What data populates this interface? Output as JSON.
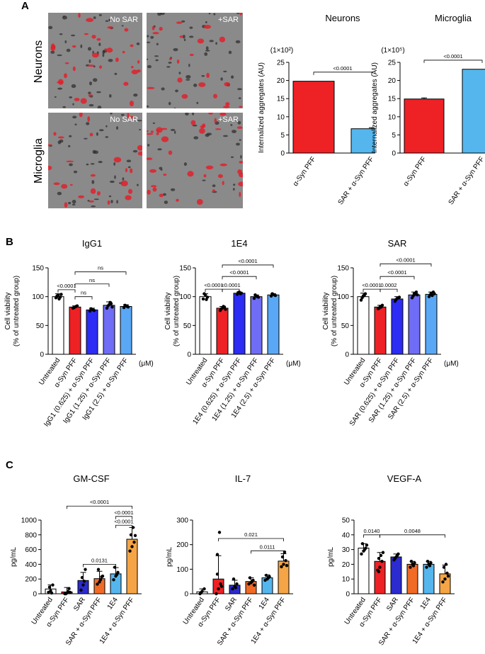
{
  "panels": {
    "A": "A",
    "B": "B",
    "C": "C"
  },
  "micrographs": {
    "rows": [
      "Neurons",
      "Microglia"
    ],
    "labels": [
      "No SAR",
      "+SAR",
      "No SAR",
      "+SAR"
    ],
    "cell_color": "#e0202a",
    "background_color": "#8a8a8a"
  },
  "chart_data": [
    {
      "id": "A-neurons",
      "type": "bar",
      "title": "Neurons",
      "ylabel": "Internalized aggregates (AU)",
      "scale_note": "(1×10²)",
      "ylim": [
        0,
        25
      ],
      "yticks": [
        0,
        5,
        10,
        15,
        20,
        25
      ],
      "categories": [
        "α-Syn PFF",
        "SAR + α-Syn PFF"
      ],
      "values": [
        19.8,
        6.7
      ],
      "errors": [
        0,
        0.3
      ],
      "colors": [
        "#ee2125",
        "#55b6ee"
      ],
      "comparisons": [
        {
          "from": 0,
          "to": 1,
          "label": "<0.0001",
          "y": 22.3
        }
      ]
    },
    {
      "id": "A-microglia",
      "type": "bar",
      "title": "Microglia",
      "ylabel": "Internalized aggregates (AU)",
      "scale_note": "(1×10⁵)",
      "ylim": [
        0,
        25
      ],
      "yticks": [
        0,
        5,
        10,
        15,
        20,
        25
      ],
      "categories": [
        "α-Syn PFF",
        "SAR + α-Syn PFF"
      ],
      "values": [
        14.9,
        23.1
      ],
      "errors": [
        0.3,
        0
      ],
      "colors": [
        "#ee2125",
        "#55b6ee"
      ],
      "comparisons": [
        {
          "from": 0,
          "to": 1,
          "label": "<0.0001",
          "y": 25.6
        }
      ]
    },
    {
      "id": "B-IgG1",
      "type": "bar",
      "title": "IgG1",
      "ylabel": "Cell viability\n(% of untreated group)",
      "unit": "(μM)",
      "ylim": [
        0,
        150
      ],
      "yticks": [
        0,
        50,
        100,
        150
      ],
      "categories": [
        "Untreated",
        "α-Syn PFF",
        "IgG1 (0.625) + α-Syn PFF",
        "IgG1 (1.25) + α-Syn PFF",
        "IgG1 (2.5) + α-Syn PFF"
      ],
      "values": [
        100,
        82,
        77,
        85,
        83
      ],
      "errors": [
        5,
        2,
        3,
        6,
        3
      ],
      "colors": [
        "#ffffff",
        "#ee2125",
        "#2c2cf5",
        "#6f6cf5",
        "#5aa8f5"
      ],
      "points": [
        [
          98,
          103,
          99,
          101,
          96,
          104,
          100
        ],
        [
          80,
          82,
          84,
          81,
          83
        ],
        [
          75,
          78,
          76,
          79,
          77
        ],
        [
          80,
          86,
          88,
          84,
          90,
          82
        ],
        [
          81,
          84,
          82,
          85,
          83
        ]
      ],
      "comparisons": [
        {
          "from": 0,
          "to": 1,
          "label": "<0.0001",
          "y": 112
        },
        {
          "from": 1,
          "to": 2,
          "label": "ns",
          "y": 100
        },
        {
          "from": 1,
          "to": 3,
          "label": "ns",
          "y": 122
        },
        {
          "from": 1,
          "to": 4,
          "label": "ns",
          "y": 143
        }
      ]
    },
    {
      "id": "B-1E4",
      "type": "bar",
      "title": "1E4",
      "ylabel": "Cell viability\n(% of untreated group)",
      "unit": "(μM)",
      "ylim": [
        0,
        150
      ],
      "yticks": [
        0,
        50,
        100,
        150
      ],
      "categories": [
        "Untreated",
        "α-Syn PFF",
        "1E4 (0.625) + α-Syn PFF",
        "1E4 (1.25) + α-Syn PFF",
        "1E4 (2.5) + α-Syn PFF"
      ],
      "values": [
        100,
        80,
        106,
        100,
        103
      ],
      "errors": [
        5,
        3,
        2,
        3,
        2
      ],
      "colors": [
        "#ffffff",
        "#ee2125",
        "#2c2cf5",
        "#6f6cf5",
        "#5aa8f5"
      ],
      "points": [
        [
          96,
          103,
          99,
          105,
          95
        ],
        [
          76,
          80,
          82,
          79,
          83,
          78
        ],
        [
          104,
          108,
          106,
          107,
          105
        ],
        [
          97,
          101,
          99,
          103,
          100
        ],
        [
          101,
          104,
          102,
          105,
          103
        ]
      ],
      "comparisons": [
        {
          "from": 0,
          "to": 1,
          "label": "<0.0001",
          "y": 113
        },
        {
          "from": 1,
          "to": 2,
          "label": "<0.0001",
          "y": 113
        },
        {
          "from": 1,
          "to": 3,
          "label": "<0.0001",
          "y": 135
        },
        {
          "from": 1,
          "to": 4,
          "label": "<0.0001",
          "y": 155
        }
      ]
    },
    {
      "id": "B-SAR",
      "type": "bar",
      "title": "SAR",
      "ylabel": "Cell viability\n(% of untreated group)",
      "unit": "(μM)",
      "ylim": [
        0,
        150
      ],
      "yticks": [
        0,
        50,
        100,
        150
      ],
      "categories": [
        "Untreated",
        "α-Syn PFF",
        "SAR (0.625) + α-Syn PFF",
        "SAR (1.25) + α-Syn PFF",
        "SAR (2.5) + α-Syn PFF"
      ],
      "values": [
        100,
        82,
        96,
        103,
        104
      ],
      "errors": [
        6,
        3,
        4,
        5,
        4
      ],
      "colors": [
        "#ffffff",
        "#ee2125",
        "#2c2cf5",
        "#6f6cf5",
        "#5aa8f5"
      ],
      "points": [
        [
          94,
          101,
          105,
          98,
          102
        ],
        [
          79,
          83,
          85,
          80,
          82
        ],
        [
          92,
          97,
          99,
          95,
          98
        ],
        [
          98,
          105,
          108,
          101,
          104,
          103
        ],
        [
          100,
          106,
          108,
          103,
          102,
          105
        ]
      ],
      "comparisons": [
        {
          "from": 0,
          "to": 1,
          "label": "<0.0001",
          "y": 113
        },
        {
          "from": 1,
          "to": 2,
          "label": "0.0002",
          "y": 113
        },
        {
          "from": 1,
          "to": 3,
          "label": "<0.0001",
          "y": 135
        },
        {
          "from": 1,
          "to": 4,
          "label": "<0.0001",
          "y": 157
        }
      ]
    },
    {
      "id": "C-GM-CSF",
      "type": "bar",
      "title": "GM-CSF",
      "ylabel": "pg/mL",
      "ylim": [
        0,
        1000
      ],
      "yticks": [
        0,
        200,
        400,
        600,
        800,
        1000
      ],
      "categories": [
        "Untreated",
        "α-Syn PFF",
        "SAR",
        "SAR + α-Syn PFF",
        "1E4",
        "1E4 + α-Syn PFF"
      ],
      "values": [
        65,
        25,
        180,
        205,
        270,
        740
      ],
      "errors": [
        55,
        60,
        110,
        100,
        85,
        160
      ],
      "colors": [
        "#ffffff",
        "#ee2125",
        "#2b2bcf",
        "#f16b26",
        "#55b6ee",
        "#f5a545"
      ],
      "points": [
        [
          20,
          40,
          120,
          90,
          10
        ],
        [
          0,
          10,
          70,
          0,
          30,
          20
        ],
        [
          50,
          120,
          330,
          220,
          170
        ],
        [
          130,
          160,
          230,
          330,
          190,
          240
        ],
        [
          190,
          240,
          290,
          360,
          260
        ],
        [
          580,
          640,
          700,
          800,
          900,
          790
        ]
      ],
      "comparisons": [
        {
          "from": 2,
          "to": 4,
          "label": "0.0131",
          "y": 400
        },
        {
          "from": 1,
          "to": 5,
          "label": "<0.0001",
          "y": 1190
        },
        {
          "from": 4,
          "to": 5,
          "label": "<0.0001",
          "y": 1050
        },
        {
          "from": 4,
          "to": 5,
          "label": "<0.0001",
          "y": 930
        }
      ]
    },
    {
      "id": "C-IL-7",
      "type": "bar",
      "title": "IL-7",
      "ylabel": "pg/mL",
      "ylim": [
        0,
        300
      ],
      "yticks": [
        0,
        100,
        200,
        300
      ],
      "categories": [
        "Untreated",
        "α-Syn PFF",
        "SAR",
        "SAR + α-Syn PFF",
        "1E4",
        "1E4 + α-Syn PFF"
      ],
      "values": [
        8,
        60,
        35,
        50,
        65,
        133
      ],
      "errors": [
        12,
        95,
        20,
        15,
        12,
        30
      ],
      "colors": [
        "#ffffff",
        "#ee2125",
        "#2b2bcf",
        "#f16b26",
        "#55b6ee",
        "#f5a545"
      ],
      "points": [
        [
          0,
          10,
          20,
          5
        ],
        [
          0,
          20,
          40,
          80,
          250,
          30,
          160
        ],
        [
          20,
          30,
          40,
          60,
          25
        ],
        [
          40,
          45,
          55,
          65,
          50,
          35
        ],
        [
          55,
          60,
          70,
          75,
          65
        ],
        [
          110,
          120,
          135,
          150,
          170,
          115
        ]
      ],
      "comparisons": [
        {
          "from": 1,
          "to": 5,
          "label": "0.021",
          "y": 225
        },
        {
          "from": 3,
          "to": 5,
          "label": "0.0111",
          "y": 175
        }
      ]
    },
    {
      "id": "C-VEGF-A",
      "type": "bar",
      "title": "VEGF-A",
      "ylabel": "pg/mL",
      "ylim": [
        0,
        50
      ],
      "yticks": [
        0,
        10,
        20,
        30,
        40,
        50
      ],
      "categories": [
        "Untreated",
        "α-Syn PFF",
        "SAR",
        "SAR + α-Syn PFF",
        "1E4",
        "1E4 + α-Syn PFF"
      ],
      "values": [
        31,
        22,
        25,
        20,
        20,
        13.5
      ],
      "errors": [
        3,
        6,
        2,
        2,
        2,
        6
      ],
      "colors": [
        "#ffffff",
        "#ee2125",
        "#2b2bcf",
        "#f16b26",
        "#55b6ee",
        "#f5a545"
      ],
      "points": [
        [
          27,
          29,
          31,
          34,
          30,
          33
        ],
        [
          16,
          18,
          22,
          24,
          26,
          28,
          15
        ],
        [
          23,
          25,
          27,
          24,
          26
        ],
        [
          18,
          20,
          21,
          22,
          19
        ],
        [
          18,
          20,
          21,
          22,
          19
        ],
        [
          8,
          10,
          14,
          18,
          20,
          12
        ]
      ],
      "comparisons": [
        {
          "from": 0,
          "to": 1,
          "label": "0.0140",
          "y": 40
        },
        {
          "from": 1,
          "to": 5,
          "label": "0.0048",
          "y": 40
        }
      ]
    }
  ]
}
